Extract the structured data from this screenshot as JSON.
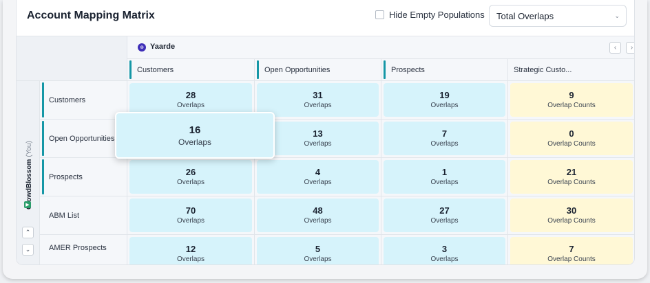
{
  "header": {
    "title": "Account Mapping Matrix",
    "hide_empty_label": "Hide Empty Populations",
    "metric_select": "Total Overlaps"
  },
  "partner": {
    "name": "Yaarde",
    "logo_text": "⊕"
  },
  "you": {
    "name": "CrowdBlossom",
    "suffix": "(You)",
    "logo_text": "▶"
  },
  "icons": {
    "prev": "‹",
    "next": "›",
    "up": "⌃",
    "down": "⌄",
    "select_chevron": "⌄"
  },
  "columns": [
    {
      "label": "Customers"
    },
    {
      "label": "Open Opportunities"
    },
    {
      "label": "Prospects"
    },
    {
      "label": "Strategic Custo..."
    }
  ],
  "rows": [
    {
      "label": "Customers",
      "cells": [
        {
          "value": "28",
          "unit": "Overlaps"
        },
        {
          "value": "31",
          "unit": "Overlaps"
        },
        {
          "value": "19",
          "unit": "Overlaps"
        },
        {
          "value": "9",
          "unit": "Overlap Counts"
        }
      ]
    },
    {
      "label": "Open Opportunities",
      "cells": [
        {
          "value": "16",
          "unit": "Overlaps"
        },
        {
          "value": "13",
          "unit": "Overlaps"
        },
        {
          "value": "7",
          "unit": "Overlaps"
        },
        {
          "value": "0",
          "unit": "Overlap Counts"
        }
      ]
    },
    {
      "label": "Prospects",
      "cells": [
        {
          "value": "26",
          "unit": "Overlaps"
        },
        {
          "value": "4",
          "unit": "Overlaps"
        },
        {
          "value": "1",
          "unit": "Overlaps"
        },
        {
          "value": "21",
          "unit": "Overlap Counts"
        }
      ]
    },
    {
      "label": "ABM List",
      "cells": [
        {
          "value": "70",
          "unit": "Overlaps"
        },
        {
          "value": "48",
          "unit": "Overlaps"
        },
        {
          "value": "27",
          "unit": "Overlaps"
        },
        {
          "value": "30",
          "unit": "Overlap Counts"
        }
      ]
    },
    {
      "label": "AMER Prospects",
      "cells": [
        {
          "value": "12",
          "unit": "Overlaps"
        },
        {
          "value": "5",
          "unit": "Overlaps"
        },
        {
          "value": "3",
          "unit": "Overlaps"
        },
        {
          "value": "7",
          "unit": "Overlap Counts"
        }
      ]
    }
  ],
  "hover": {
    "value": "16",
    "unit": "Overlaps"
  },
  "colors": {
    "accent": "#1597a6",
    "cell_blue": "#d6f3fb",
    "cell_yellow": "#fff8d6"
  }
}
